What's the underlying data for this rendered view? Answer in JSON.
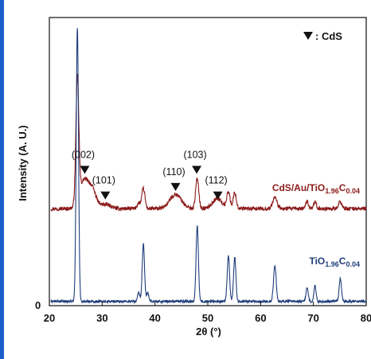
{
  "chart_data": {
    "type": "line",
    "xlabel": "2θ (°)",
    "ylabel": "Intensity (A. U.)",
    "xlim": [
      20,
      80
    ],
    "xticks": [
      "20",
      "30",
      "40",
      "50",
      "60",
      "70",
      "80"
    ],
    "y_zero_label": "0",
    "legend_marker_label": ": CdS",
    "grid": false,
    "series": [
      {
        "name": "CdS/Au/TiO1.96C0.04",
        "label_parts": [
          "CdS/Au/TiO",
          "1.96",
          "C",
          "0.04"
        ],
        "color": "#8b1a1a",
        "baseline": 3.4,
        "peaks": [
          {
            "x": 25.3,
            "h": 4.3,
            "w": 0.28
          },
          {
            "x": 26.6,
            "h": 1.0,
            "w": 0.9
          },
          {
            "x": 28.2,
            "h": 0.55,
            "w": 0.7
          },
          {
            "x": 30.6,
            "h": 0.15,
            "w": 1.0
          },
          {
            "x": 36.9,
            "h": 0.2,
            "w": 0.3
          },
          {
            "x": 37.8,
            "h": 0.7,
            "w": 0.3
          },
          {
            "x": 43.9,
            "h": 0.5,
            "w": 1.1
          },
          {
            "x": 48.0,
            "h": 1.05,
            "w": 0.3
          },
          {
            "x": 51.8,
            "h": 0.35,
            "w": 0.9
          },
          {
            "x": 53.9,
            "h": 0.6,
            "w": 0.3
          },
          {
            "x": 55.1,
            "h": 0.55,
            "w": 0.3
          },
          {
            "x": 62.7,
            "h": 0.4,
            "w": 0.4
          },
          {
            "x": 68.8,
            "h": 0.25,
            "w": 0.3
          },
          {
            "x": 70.3,
            "h": 0.2,
            "w": 0.3
          },
          {
            "x": 75.1,
            "h": 0.25,
            "w": 0.3
          }
        ]
      },
      {
        "name": "TiO1.96C0.04",
        "label_parts": [
          "TiO",
          "1.96",
          "C",
          "0.04"
        ],
        "color": "#1f3d7a",
        "baseline": 0.15,
        "peaks": [
          {
            "x": 25.3,
            "h": 9.6,
            "w": 0.22
          },
          {
            "x": 36.9,
            "h": 0.3,
            "w": 0.2
          },
          {
            "x": 37.8,
            "h": 2.0,
            "w": 0.22
          },
          {
            "x": 38.6,
            "h": 0.3,
            "w": 0.2
          },
          {
            "x": 48.0,
            "h": 2.65,
            "w": 0.22
          },
          {
            "x": 53.9,
            "h": 1.6,
            "w": 0.22
          },
          {
            "x": 55.1,
            "h": 1.55,
            "w": 0.22
          },
          {
            "x": 62.7,
            "h": 1.25,
            "w": 0.25
          },
          {
            "x": 68.8,
            "h": 0.5,
            "w": 0.2
          },
          {
            "x": 70.3,
            "h": 0.55,
            "w": 0.2
          },
          {
            "x": 75.1,
            "h": 0.8,
            "w": 0.22
          }
        ]
      }
    ],
    "annotations": [
      {
        "label": "(002)",
        "x": 26.7,
        "y": 4.9
      },
      {
        "label": "(101)",
        "x": 30.6,
        "y": 4.0
      },
      {
        "label": "(110)",
        "x": 43.9,
        "y": 4.3
      },
      {
        "label": "(103)",
        "x": 47.9,
        "y": 4.9
      },
      {
        "label": "(112)",
        "x": 51.9,
        "y": 4.0
      }
    ]
  }
}
